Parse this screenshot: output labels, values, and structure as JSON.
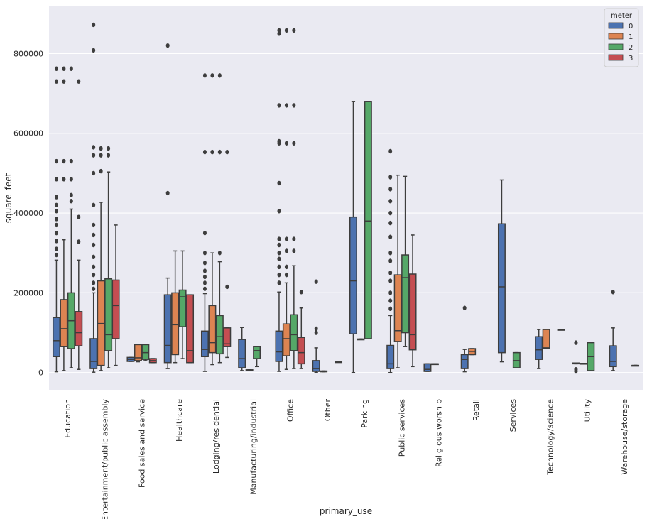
{
  "chart_data": {
    "type": "box",
    "xlabel": "primary_use",
    "ylabel": "square_feet",
    "ylim": [
      -45000,
      920000
    ],
    "yticks": [
      0,
      200000,
      400000,
      600000,
      800000
    ],
    "ytick_labels": [
      "0",
      "200000",
      "400000",
      "600000",
      "800000"
    ],
    "legend": {
      "title": "meter",
      "position": "top-right",
      "entries": [
        {
          "label": "0",
          "color": "#4c72b0"
        },
        {
          "label": "1",
          "color": "#dd8452"
        },
        {
          "label": "2",
          "color": "#55a868"
        },
        {
          "label": "3",
          "color": "#c44e52"
        }
      ]
    },
    "categories": [
      "Education",
      "Entertainment/public assembly",
      "Food sales and service",
      "Healthcare",
      "Lodging/residential",
      "Manufacturing/industrial",
      "Office",
      "Other",
      "Parking",
      "Public services",
      "Religious worship",
      "Retail",
      "Services",
      "Technology/science",
      "Utility",
      "Warehouse/storage"
    ],
    "series": [
      {
        "name": "0",
        "boxes": [
          {
            "q1": 40000,
            "median": 80000,
            "q3": 138000,
            "whislo": 2000,
            "whishi": 282000,
            "fliers": [
              295000,
              310000,
              330000,
              350000,
              370000,
              385000,
              405000,
              420000,
              440000,
              485000,
              530000,
              730000,
              762000
            ]
          },
          {
            "q1": 10000,
            "median": 28000,
            "q3": 85000,
            "whislo": 1000,
            "whishi": 200000,
            "fliers": [
              210000,
              225000,
              245000,
              265000,
              290000,
              320000,
              345000,
              370000,
              420000,
              500000,
              545000,
              565000,
              808000,
              872000
            ]
          },
          {
            "q1": 28000,
            "median": 33000,
            "q3": 38000,
            "whislo": 28000,
            "whishi": 38000,
            "fliers": []
          },
          {
            "q1": 25000,
            "median": 68000,
            "q3": 195000,
            "whislo": 10000,
            "whishi": 237000,
            "fliers": [
              450000,
              820000
            ]
          },
          {
            "q1": 40000,
            "median": 58000,
            "q3": 104000,
            "whislo": 3000,
            "whishi": 198000,
            "fliers": [
              210000,
              225000,
              240000,
              255000,
              275000,
              300000,
              350000,
              553000,
              745000
            ]
          },
          {
            "q1": 12000,
            "median": 35000,
            "q3": 83000,
            "whislo": 5000,
            "whishi": 113000,
            "fliers": []
          },
          {
            "q1": 28000,
            "median": 52000,
            "q3": 104000,
            "whislo": 3000,
            "whishi": 202000,
            "fliers": [
              225000,
              245000,
              265000,
              285000,
              300000,
              320000,
              335000,
              405000,
              475000,
              575000,
              580000,
              670000,
              850000,
              858000
            ]
          },
          {
            "q1": 3000,
            "median": 10000,
            "q3": 30000,
            "whislo": 0,
            "whishi": 62000,
            "fliers": [
              100000,
              110000,
              228000
            ]
          },
          {
            "q1": 97000,
            "median": 230000,
            "q3": 390000,
            "whislo": 0,
            "whishi": 680000,
            "fliers": []
          },
          {
            "q1": 10000,
            "median": 22000,
            "q3": 68000,
            "whislo": 0,
            "whishi": 143000,
            "fliers": [
              160000,
              180000,
              200000,
              230000,
              250000,
              280000,
              300000,
              340000,
              375000,
              400000,
              430000,
              460000,
              490000,
              555000
            ]
          },
          {
            "q1": 3000,
            "median": 8000,
            "q3": 22000,
            "whislo": 3000,
            "whishi": 22000,
            "fliers": []
          },
          {
            "q1": 10000,
            "median": 33000,
            "q3": 45000,
            "whislo": 2000,
            "whishi": 58000,
            "fliers": [
              162000
            ]
          },
          {
            "q1": 50000,
            "median": 215000,
            "q3": 373000,
            "whislo": 27000,
            "whishi": 483000,
            "fliers": []
          },
          {
            "q1": 33000,
            "median": 57000,
            "q3": 90000,
            "whislo": 10000,
            "whishi": 108000,
            "fliers": []
          },
          {
            "q1": 22000,
            "median": 23000,
            "q3": 24000,
            "whislo": 22000,
            "whishi": 24000,
            "fliers": [
              3000,
              8000,
              75000
            ]
          },
          {
            "q1": 15000,
            "median": 28000,
            "q3": 67000,
            "whislo": 5000,
            "whishi": 112000,
            "fliers": [
              202000
            ]
          }
        ]
      },
      {
        "name": "1",
        "boxes": [
          {
            "q1": 65000,
            "median": 110000,
            "q3": 183000,
            "whislo": 5000,
            "whishi": 333000,
            "fliers": [
              485000,
              530000,
              730000,
              762000
            ]
          },
          {
            "q1": 18000,
            "median": 123000,
            "q3": 230000,
            "whislo": 5000,
            "whishi": 427000,
            "fliers": [
              505000,
              545000,
              562000
            ]
          },
          {
            "q1": 30000,
            "median": 37000,
            "q3": 70000,
            "whislo": 27000,
            "whishi": 70000,
            "fliers": []
          },
          {
            "q1": 45000,
            "median": 120000,
            "q3": 200000,
            "whislo": 25000,
            "whishi": 305000,
            "fliers": []
          },
          {
            "q1": 50000,
            "median": 75000,
            "q3": 168000,
            "whislo": 20000,
            "whishi": 300000,
            "fliers": [
              553000,
              745000
            ]
          },
          {
            "q1": 5000,
            "median": 6000,
            "q3": 7000,
            "whislo": 5000,
            "whishi": 7000,
            "fliers": []
          },
          {
            "q1": 42000,
            "median": 85000,
            "q3": 122000,
            "whislo": 8000,
            "whishi": 225000,
            "fliers": [
              245000,
              265000,
              305000,
              335000,
              575000,
              670000,
              858000
            ]
          },
          {
            "q1": 2000,
            "median": 3000,
            "q3": 4000,
            "whislo": 2000,
            "whishi": 4000,
            "fliers": []
          },
          {
            "q1": 84000,
            "median": 84000,
            "q3": 84000,
            "whislo": 84000,
            "whishi": 84000,
            "fliers": []
          },
          {
            "q1": 78000,
            "median": 105000,
            "q3": 245000,
            "whislo": 12000,
            "whishi": 495000,
            "fliers": []
          },
          {
            "q1": 22000,
            "median": 22000,
            "q3": 22000,
            "whislo": 22000,
            "whishi": 22000,
            "fliers": []
          },
          {
            "q1": 45000,
            "median": 53000,
            "q3": 60000,
            "whislo": 45000,
            "whishi": 60000,
            "fliers": []
          },
          null,
          {
            "q1": 60000,
            "median": 62000,
            "q3": 108000,
            "whislo": 60000,
            "whishi": 108000,
            "fliers": []
          },
          {
            "q1": 23000,
            "median": 23000,
            "q3": 23000,
            "whislo": 23000,
            "whishi": 23000,
            "fliers": []
          },
          null
        ]
      },
      {
        "name": "2",
        "boxes": [
          {
            "q1": 60000,
            "median": 130000,
            "q3": 200000,
            "whislo": 12000,
            "whishi": 410000,
            "fliers": [
              430000,
              445000,
              485000,
              530000,
              762000
            ]
          },
          {
            "q1": 55000,
            "median": 95000,
            "q3": 235000,
            "whislo": 12000,
            "whishi": 503000,
            "fliers": [
              545000,
              562000
            ]
          },
          {
            "q1": 33000,
            "median": 50000,
            "q3": 70000,
            "whislo": 30000,
            "whishi": 70000,
            "fliers": []
          },
          {
            "q1": 115000,
            "median": 190000,
            "q3": 207000,
            "whislo": 35000,
            "whishi": 305000,
            "fliers": []
          },
          {
            "q1": 47000,
            "median": 90000,
            "q3": 143000,
            "whislo": 25000,
            "whishi": 278000,
            "fliers": [
              300000,
              553000,
              745000
            ]
          },
          {
            "q1": 35000,
            "median": 55000,
            "q3": 65000,
            "whislo": 15000,
            "whishi": 65000,
            "fliers": []
          },
          {
            "q1": 55000,
            "median": 95000,
            "q3": 145000,
            "whislo": 10000,
            "whishi": 268000,
            "fliers": [
              305000,
              335000,
              575000,
              670000,
              858000
            ]
          },
          null,
          {
            "q1": 85000,
            "median": 380000,
            "q3": 680000,
            "whislo": 85000,
            "whishi": 680000,
            "fliers": []
          },
          {
            "q1": 100000,
            "median": 238000,
            "q3": 295000,
            "whislo": 65000,
            "whishi": 492000,
            "fliers": []
          },
          null,
          null,
          {
            "q1": 12000,
            "median": 30000,
            "q3": 50000,
            "whislo": 12000,
            "whishi": 50000,
            "fliers": []
          },
          null,
          {
            "q1": 5000,
            "median": 40000,
            "q3": 75000,
            "whislo": 5000,
            "whishi": 75000,
            "fliers": []
          },
          null
        ]
      },
      {
        "name": "3",
        "boxes": [
          {
            "q1": 67000,
            "median": 100000,
            "q3": 153000,
            "whislo": 8000,
            "whishi": 282000,
            "fliers": [
              328000,
              390000,
              730000
            ]
          },
          {
            "q1": 85000,
            "median": 168000,
            "q3": 232000,
            "whislo": 18000,
            "whishi": 370000,
            "fliers": []
          },
          {
            "q1": 25000,
            "median": 30000,
            "q3": 35000,
            "whislo": 25000,
            "whishi": 35000,
            "fliers": []
          },
          {
            "q1": 25000,
            "median": 55000,
            "q3": 195000,
            "whislo": 25000,
            "whishi": 195000,
            "fliers": []
          },
          {
            "q1": 65000,
            "median": 72000,
            "q3": 112000,
            "whislo": 38000,
            "whishi": 112000,
            "fliers": [
              215000,
              553000
            ]
          },
          null,
          {
            "q1": 22000,
            "median": 50000,
            "q3": 88000,
            "whislo": 10000,
            "whishi": 162000,
            "fliers": [
              202000
            ]
          },
          {
            "q1": 27000,
            "median": 27000,
            "q3": 27000,
            "whislo": 27000,
            "whishi": 27000,
            "fliers": []
          },
          null,
          {
            "q1": 57000,
            "median": 95000,
            "q3": 247000,
            "whislo": 15000,
            "whishi": 345000,
            "fliers": []
          },
          null,
          null,
          null,
          {
            "q1": 108000,
            "median": 108000,
            "q3": 108000,
            "whislo": 108000,
            "whishi": 108000,
            "fliers": []
          },
          null,
          {
            "q1": 18000,
            "median": 18000,
            "q3": 18000,
            "whislo": 18000,
            "whishi": 18000,
            "fliers": []
          }
        ]
      }
    ]
  }
}
